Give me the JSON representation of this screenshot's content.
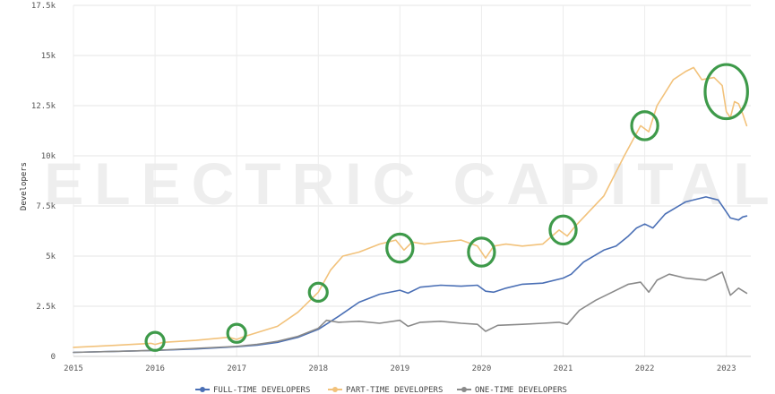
{
  "chart_data": {
    "type": "line",
    "title": "",
    "xlabel": "",
    "ylabel": "Developers",
    "xlim": [
      2015.0,
      2023.3
    ],
    "ylim": [
      0,
      17500
    ],
    "x_ticks": [
      {
        "value": 2015,
        "label": "2015"
      },
      {
        "value": 2016,
        "label": "2016"
      },
      {
        "value": 2017,
        "label": "2017"
      },
      {
        "value": 2018,
        "label": "2018"
      },
      {
        "value": 2019,
        "label": "2019"
      },
      {
        "value": 2020,
        "label": "2020"
      },
      {
        "value": 2021,
        "label": "2021"
      },
      {
        "value": 2022,
        "label": "2022"
      },
      {
        "value": 2023,
        "label": "2023"
      }
    ],
    "y_ticks": [
      {
        "value": 0,
        "label": "0"
      },
      {
        "value": 2500,
        "label": "2.5k"
      },
      {
        "value": 5000,
        "label": "5k"
      },
      {
        "value": 7500,
        "label": "7.5k"
      },
      {
        "value": 10000,
        "label": "10k"
      },
      {
        "value": 12500,
        "label": "12.5k"
      },
      {
        "value": 15000,
        "label": "15k"
      },
      {
        "value": 17500,
        "label": "17.5k"
      }
    ],
    "grid": true,
    "legend_position": "bottom",
    "watermark": "ELECTRIC CAPITAL",
    "series": [
      {
        "name": "FULL-TIME DEVELOPERS",
        "color": "#4a6fb5",
        "points": [
          [
            2015.0,
            200
          ],
          [
            2015.5,
            250
          ],
          [
            2016.0,
            300
          ],
          [
            2016.5,
            370
          ],
          [
            2017.0,
            480
          ],
          [
            2017.25,
            560
          ],
          [
            2017.5,
            700
          ],
          [
            2017.75,
            950
          ],
          [
            2018.0,
            1350
          ],
          [
            2018.25,
            2000
          ],
          [
            2018.5,
            2700
          ],
          [
            2018.75,
            3100
          ],
          [
            2019.0,
            3300
          ],
          [
            2019.1,
            3150
          ],
          [
            2019.25,
            3450
          ],
          [
            2019.5,
            3550
          ],
          [
            2019.75,
            3500
          ],
          [
            2019.95,
            3550
          ],
          [
            2020.05,
            3250
          ],
          [
            2020.15,
            3200
          ],
          [
            2020.3,
            3400
          ],
          [
            2020.5,
            3600
          ],
          [
            2020.75,
            3650
          ],
          [
            2021.0,
            3900
          ],
          [
            2021.1,
            4100
          ],
          [
            2021.25,
            4700
          ],
          [
            2021.5,
            5300
          ],
          [
            2021.65,
            5500
          ],
          [
            2021.8,
            6000
          ],
          [
            2021.9,
            6400
          ],
          [
            2022.0,
            6600
          ],
          [
            2022.1,
            6400
          ],
          [
            2022.25,
            7100
          ],
          [
            2022.5,
            7700
          ],
          [
            2022.75,
            7950
          ],
          [
            2022.9,
            7800
          ],
          [
            2023.0,
            7200
          ],
          [
            2023.05,
            6900
          ],
          [
            2023.15,
            6800
          ],
          [
            2023.2,
            6950
          ],
          [
            2023.25,
            7000
          ]
        ]
      },
      {
        "name": "PART-TIME DEVELOPERS",
        "color": "#f2c27b",
        "points": [
          [
            2015.0,
            450
          ],
          [
            2015.5,
            550
          ],
          [
            2015.95,
            650
          ],
          [
            2016.0,
            600
          ],
          [
            2016.1,
            700
          ],
          [
            2016.5,
            800
          ],
          [
            2016.9,
            950
          ],
          [
            2017.0,
            850
          ],
          [
            2017.1,
            1000
          ],
          [
            2017.5,
            1500
          ],
          [
            2017.75,
            2200
          ],
          [
            2018.0,
            3200
          ],
          [
            2018.15,
            4300
          ],
          [
            2018.3,
            5000
          ],
          [
            2018.5,
            5200
          ],
          [
            2018.75,
            5600
          ],
          [
            2018.95,
            5800
          ],
          [
            2019.05,
            5300
          ],
          [
            2019.15,
            5700
          ],
          [
            2019.3,
            5600
          ],
          [
            2019.5,
            5700
          ],
          [
            2019.75,
            5800
          ],
          [
            2019.95,
            5500
          ],
          [
            2020.05,
            4900
          ],
          [
            2020.15,
            5500
          ],
          [
            2020.3,
            5600
          ],
          [
            2020.5,
            5500
          ],
          [
            2020.75,
            5600
          ],
          [
            2020.95,
            6300
          ],
          [
            2021.05,
            6000
          ],
          [
            2021.15,
            6500
          ],
          [
            2021.5,
            8000
          ],
          [
            2021.75,
            10000
          ],
          [
            2021.95,
            11500
          ],
          [
            2022.05,
            11200
          ],
          [
            2022.15,
            12500
          ],
          [
            2022.35,
            13800
          ],
          [
            2022.5,
            14200
          ],
          [
            2022.6,
            14400
          ],
          [
            2022.7,
            13800
          ],
          [
            2022.85,
            13900
          ],
          [
            2022.95,
            13500
          ],
          [
            2023.0,
            12200
          ],
          [
            2023.05,
            11900
          ],
          [
            2023.1,
            12700
          ],
          [
            2023.15,
            12600
          ],
          [
            2023.2,
            12100
          ],
          [
            2023.25,
            11500
          ]
        ]
      },
      {
        "name": "ONE-TIME DEVELOPERS",
        "color": "#8a8a8a",
        "points": [
          [
            2015.0,
            200
          ],
          [
            2015.5,
            250
          ],
          [
            2016.0,
            300
          ],
          [
            2016.5,
            400
          ],
          [
            2017.0,
            500
          ],
          [
            2017.25,
            600
          ],
          [
            2017.5,
            750
          ],
          [
            2017.75,
            1000
          ],
          [
            2018.0,
            1400
          ],
          [
            2018.1,
            1800
          ],
          [
            2018.25,
            1700
          ],
          [
            2018.5,
            1750
          ],
          [
            2018.75,
            1650
          ],
          [
            2019.0,
            1800
          ],
          [
            2019.1,
            1500
          ],
          [
            2019.25,
            1700
          ],
          [
            2019.5,
            1750
          ],
          [
            2019.75,
            1650
          ],
          [
            2019.95,
            1600
          ],
          [
            2020.05,
            1250
          ],
          [
            2020.2,
            1550
          ],
          [
            2020.5,
            1600
          ],
          [
            2020.75,
            1650
          ],
          [
            2020.95,
            1700
          ],
          [
            2021.05,
            1600
          ],
          [
            2021.2,
            2300
          ],
          [
            2021.4,
            2800
          ],
          [
            2021.6,
            3200
          ],
          [
            2021.8,
            3600
          ],
          [
            2021.95,
            3700
          ],
          [
            2022.05,
            3200
          ],
          [
            2022.15,
            3800
          ],
          [
            2022.3,
            4100
          ],
          [
            2022.5,
            3900
          ],
          [
            2022.75,
            3800
          ],
          [
            2022.95,
            4200
          ],
          [
            2023.05,
            3050
          ],
          [
            2023.15,
            3400
          ],
          [
            2023.25,
            3150
          ]
        ]
      }
    ],
    "annotations": [
      {
        "type": "circle",
        "color": "#3e9a4a",
        "x": 2016.0,
        "y": 750,
        "rx": 0.11,
        "ry": 450
      },
      {
        "type": "circle",
        "color": "#3e9a4a",
        "x": 2017.0,
        "y": 1150,
        "rx": 0.11,
        "ry": 450
      },
      {
        "type": "circle",
        "color": "#3e9a4a",
        "x": 2018.0,
        "y": 3200,
        "rx": 0.11,
        "ry": 450
      },
      {
        "type": "circle",
        "color": "#3e9a4a",
        "x": 2019.0,
        "y": 5400,
        "rx": 0.16,
        "ry": 700
      },
      {
        "type": "circle",
        "color": "#3e9a4a",
        "x": 2020.0,
        "y": 5200,
        "rx": 0.16,
        "ry": 700
      },
      {
        "type": "circle",
        "color": "#3e9a4a",
        "x": 2021.0,
        "y": 6300,
        "rx": 0.16,
        "ry": 700
      },
      {
        "type": "circle",
        "color": "#3e9a4a",
        "x": 2022.0,
        "y": 11500,
        "rx": 0.16,
        "ry": 700
      },
      {
        "type": "circle",
        "color": "#3e9a4a",
        "x": 2023.0,
        "y": 13200,
        "rx": 0.26,
        "ry": 1350
      }
    ]
  }
}
